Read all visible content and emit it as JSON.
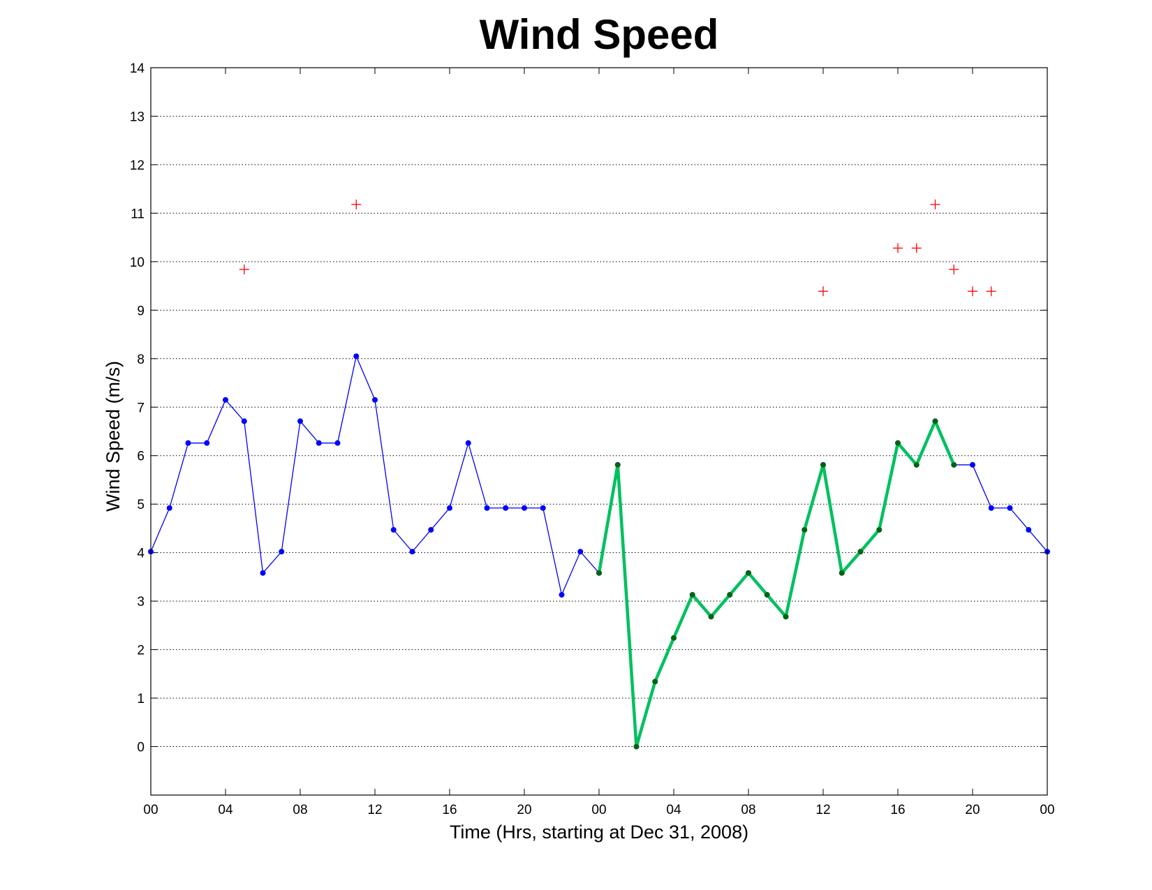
{
  "chart_data": {
    "type": "line",
    "title": "Wind Speed",
    "xlabel": "Time (Hrs, starting at Dec 31, 2008)",
    "ylabel": "Wind Speed (m/s)",
    "xlim": [
      0,
      48
    ],
    "ylim": [
      -1,
      14
    ],
    "x_ticks": [
      0,
      4,
      8,
      12,
      16,
      20,
      24,
      28,
      32,
      36,
      40,
      44,
      48
    ],
    "x_tick_labels": [
      "00",
      "04",
      "08",
      "12",
      "16",
      "20",
      "00",
      "04",
      "08",
      "12",
      "16",
      "20",
      "00"
    ],
    "y_ticks": [
      0,
      1,
      2,
      3,
      4,
      5,
      6,
      7,
      8,
      9,
      10,
      11,
      12,
      13,
      14
    ],
    "y_tick_labels": [
      "0",
      "1",
      "2",
      "3",
      "4",
      "5",
      "6",
      "7",
      "8",
      "9",
      "10",
      "11",
      "12",
      "13",
      "14"
    ],
    "grid": "y-dotted",
    "series": [
      {
        "style": "thin line with dot markers",
        "color": "#0000ff",
        "x": [
          0,
          1,
          2,
          3,
          4,
          5,
          6,
          7,
          8,
          9,
          10,
          11,
          12,
          13,
          14,
          15,
          16,
          17,
          18,
          19,
          20,
          21,
          22,
          23,
          24,
          25,
          26,
          27,
          28,
          29,
          30,
          31,
          32,
          33,
          34,
          35,
          36,
          37,
          38,
          39,
          40,
          41,
          42,
          43,
          44,
          45,
          46,
          47,
          48
        ],
        "values": [
          4.02,
          4.92,
          6.26,
          6.26,
          7.15,
          6.71,
          3.58,
          4.02,
          6.71,
          6.26,
          6.26,
          8.05,
          7.15,
          4.47,
          4.02,
          4.47,
          4.92,
          6.26,
          4.92,
          4.92,
          4.92,
          4.92,
          3.13,
          4.02,
          3.58,
          5.81,
          0.0,
          1.34,
          2.24,
          3.13,
          2.68,
          3.13,
          3.58,
          3.13,
          2.68,
          4.47,
          5.81,
          3.58,
          4.02,
          4.47,
          6.26,
          5.81,
          6.71,
          5.81,
          5.81,
          4.92,
          4.92,
          4.47,
          4.02
        ]
      },
      {
        "style": "thick line with dot markers",
        "color": "#00c060",
        "marker_color": "#006600",
        "segments": [
          {
            "x": [
              24,
              25,
              26,
              27,
              28,
              29,
              30,
              31,
              32,
              33,
              34,
              35,
              36,
              37,
              38,
              39,
              40,
              41,
              42,
              43
            ],
            "values": [
              3.58,
              5.81,
              0.0,
              1.34,
              2.24,
              3.13,
              2.68,
              3.13,
              3.58,
              3.13,
              2.68,
              4.47,
              5.81,
              3.58,
              4.02,
              4.47,
              6.26,
              5.81,
              6.71,
              5.81
            ]
          }
        ]
      },
      {
        "style": "plus markers",
        "color": "#ff0000",
        "x": [
          5,
          11,
          36,
          40,
          41,
          42,
          43,
          44,
          45
        ],
        "values": [
          9.84,
          11.18,
          9.39,
          10.28,
          10.28,
          11.18,
          9.84,
          9.39,
          9.39
        ]
      }
    ]
  }
}
